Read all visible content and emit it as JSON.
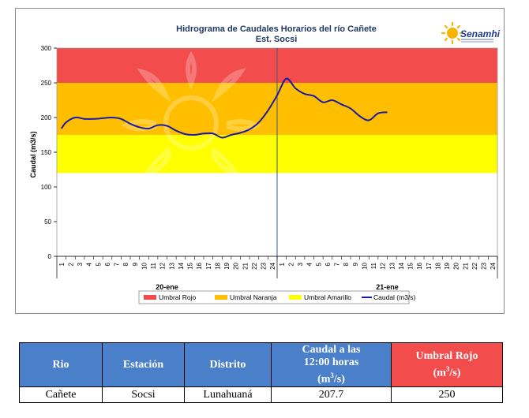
{
  "chart_data": {
    "type": "line",
    "title": "Hidrograma  de Caudales Horarios  del río Cañete",
    "subtitle": "Est. Socsi",
    "ylabel": "Caudal (m3/s)",
    "ylim": [
      0,
      300
    ],
    "yticks": [
      0,
      50,
      100,
      150,
      200,
      250,
      300
    ],
    "x_tick_labels": [
      "1",
      "2",
      "3",
      "4",
      "5",
      "6",
      "7",
      "8",
      "9",
      "10",
      "11",
      "12",
      "13",
      "14",
      "15",
      "16",
      "17",
      "18",
      "19",
      "20",
      "21",
      "22",
      "23",
      "24",
      "1",
      "2",
      "3",
      "4",
      "5",
      "6",
      "7",
      "8",
      "9",
      "10",
      "11",
      "12",
      "13",
      "14",
      "15",
      "16",
      "17",
      "18",
      "19",
      "20",
      "21",
      "22",
      "23",
      "24"
    ],
    "day_labels": [
      "20-ene",
      "21-ene"
    ],
    "bands": [
      {
        "name": "Umbral Rojo",
        "from": 250,
        "to": 300,
        "color": "#f24c4c"
      },
      {
        "name": "Umbral Naranja",
        "from": 175,
        "to": 250,
        "color": "#ffbf00"
      },
      {
        "name": "Umbral Amarillo",
        "from": 120,
        "to": 175,
        "color": "#ffff00"
      }
    ],
    "series": [
      {
        "name": "Caudal (m3/s)",
        "color": "#1a1aa6",
        "x": [
          0.5,
          1,
          2,
          3,
          4,
          5,
          6,
          7,
          8,
          9,
          10,
          11,
          12,
          13,
          14,
          15,
          16,
          17,
          18,
          19,
          20,
          21,
          22,
          23,
          24,
          25,
          26,
          27,
          28,
          29,
          30,
          31,
          32,
          33,
          34,
          35,
          36
        ],
        "y": [
          184,
          193,
          200,
          198,
          198,
          199,
          200,
          198,
          191,
          186,
          184,
          189,
          188,
          181,
          176,
          175,
          177,
          177,
          171,
          175,
          178,
          183,
          193,
          210,
          232,
          256,
          242,
          234,
          231,
          222,
          225,
          219,
          213,
          202,
          196,
          206,
          207.7
        ]
      }
    ],
    "legend_position": "bottom",
    "grid": false
  },
  "logo": {
    "text": "Senamhi"
  },
  "table": {
    "headers": {
      "rio": "Rio",
      "estacion": "Estación",
      "distrito": "Distrito",
      "caudal_line1": "Caudal a las",
      "caudal_line2": "12:00 horas",
      "caudal_unit_pre": "(m",
      "caudal_unit_sup": "3",
      "caudal_unit_post": "/s)",
      "umbral_line1": "Umbral Rojo",
      "umbral_unit_pre": "(m",
      "umbral_unit_sup": "3",
      "umbral_unit_post": "/s)"
    },
    "row": {
      "rio": "Cañete",
      "estacion": "Socsi",
      "distrito": "Lunahuaná",
      "caudal": "207.7",
      "umbral": "250"
    }
  }
}
